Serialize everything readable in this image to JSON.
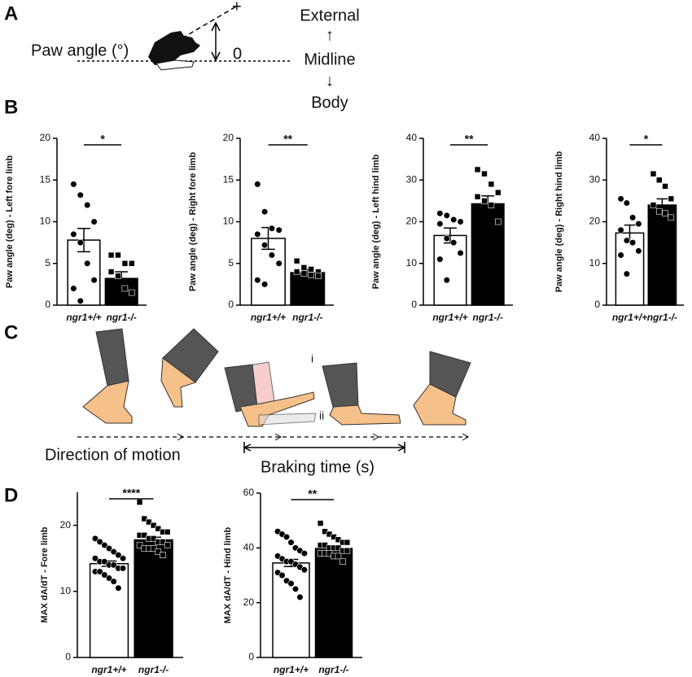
{
  "panels": {
    "a": "A",
    "b": "B",
    "c": "C",
    "d": "D"
  },
  "diagram_a": {
    "label": "Paw angle (°)",
    "plus": "+",
    "zero": "0",
    "external": "External",
    "up": "↑",
    "midline": "Midline",
    "down": "↓",
    "body": "Body"
  },
  "diagram_c": {
    "direction": "Direction of motion",
    "braking": "Braking time (s)",
    "pos_i": "i",
    "pos_ii": "ii"
  },
  "chart_data": [
    {
      "type": "bar",
      "ylabel": "Paw angle  (deg) - Left fore limb",
      "categories": [
        "ngr1+/+",
        "ngr1-/-"
      ],
      "values": [
        7.8,
        3.2
      ],
      "errors": [
        1.4,
        0.8
      ],
      "colors": [
        "#ffffff",
        "#000000"
      ],
      "markers": [
        "circle",
        "square"
      ],
      "significance": "*",
      "points": [
        [
          14.5,
          13.2,
          12.0,
          10.0,
          8.5,
          7.5,
          5.0,
          3.0,
          2.0,
          0.5
        ],
        [
          6.0,
          6.0,
          5.0,
          5.0,
          4.0,
          3.5,
          2.0,
          1.5
        ]
      ],
      "ylim": [
        0,
        20
      ],
      "yticks": [
        0,
        5,
        10,
        15,
        20
      ]
    },
    {
      "type": "bar",
      "ylabel": "Paw angle (deg) - Right fore limb",
      "categories": [
        "ngr1+/+",
        "ngr1-/-"
      ],
      "values": [
        8.0,
        3.9
      ],
      "errors": [
        1.3,
        0.4
      ],
      "colors": [
        "#ffffff",
        "#000000"
      ],
      "markers": [
        "circle",
        "square"
      ],
      "significance": "**",
      "points": [
        [
          14.5,
          11.2,
          9.2,
          9.0,
          8.5,
          7.2,
          6.0,
          5.0,
          3.0,
          2.5
        ],
        [
          5.3,
          4.5,
          4.3,
          4.0,
          4.0,
          3.8,
          3.6,
          3.5
        ]
      ],
      "ylim": [
        0,
        20
      ],
      "yticks": [
        0,
        5,
        10,
        15,
        20
      ]
    },
    {
      "type": "bar",
      "ylabel": "Paw angle (deg) - Left hind limb",
      "categories": [
        "ngr1+/+",
        "ngr1-/-"
      ],
      "values": [
        16.7,
        24.3
      ],
      "errors": [
        1.8,
        1.9
      ],
      "colors": [
        "#ffffff",
        "#000000"
      ],
      "markers": [
        "circle",
        "square"
      ],
      "significance": "**",
      "points": [
        [
          22,
          21.5,
          20.5,
          20,
          19.5,
          16,
          15,
          12.5,
          11,
          6
        ],
        [
          32.5,
          31.5,
          29,
          27,
          26,
          25,
          24,
          20
        ]
      ],
      "ylim": [
        0,
        40
      ],
      "yticks": [
        0,
        10,
        20,
        30,
        40
      ]
    },
    {
      "type": "bar",
      "ylabel": "Paw angle (deg) - Right hind limb",
      "categories": [
        "ngr1+/+",
        "ngr1-/-"
      ],
      "values": [
        17.3,
        24.0
      ],
      "errors": [
        1.9,
        1.5
      ],
      "colors": [
        "#ffffff",
        "#000000"
      ],
      "markers": [
        "circle",
        "square"
      ],
      "significance": "*",
      "points": [
        [
          25.5,
          24.5,
          21,
          19.5,
          18,
          15.5,
          15,
          13,
          12,
          7.5
        ],
        [
          31.5,
          30,
          28.5,
          25.5,
          24,
          22.5,
          22,
          21
        ]
      ],
      "ylim": [
        0,
        40
      ],
      "yticks": [
        0,
        10,
        20,
        30,
        40
      ]
    },
    {
      "type": "bar",
      "ylabel": "MAX dA/dT - Fore limb",
      "categories": [
        "ngr1+/+",
        "ngr1-/-"
      ],
      "values": [
        14.2,
        17.8
      ],
      "errors": [
        0.4,
        0.4
      ],
      "colors": [
        "#ffffff",
        "#000000"
      ],
      "markers": [
        "circle",
        "square"
      ],
      "significance": "****",
      "points": [
        [
          18,
          17.5,
          17,
          16.5,
          16,
          15.5,
          15,
          15,
          14.5,
          14.5,
          14,
          14,
          13.5,
          13.5,
          13,
          13,
          12.5,
          12,
          11.5,
          10.5
        ],
        [
          23.5,
          21,
          20.5,
          20,
          19.5,
          19,
          19,
          18.5,
          18.5,
          18,
          18,
          17.5,
          17.5,
          17,
          17,
          16.5,
          16.5,
          16.5,
          16,
          15.5
        ]
      ],
      "ylim": [
        0,
        25
      ],
      "yticks": [
        0,
        10,
        20
      ]
    },
    {
      "type": "bar",
      "ylabel": "MAX dA/dT - Hind limb",
      "categories": [
        "ngr1+/+",
        "ngr1-/-"
      ],
      "values": [
        34.5,
        39.8
      ],
      "errors": [
        1.3,
        0.7
      ],
      "colors": [
        "#ffffff",
        "#000000"
      ],
      "markers": [
        "circle",
        "square"
      ],
      "significance": "**",
      "points": [
        [
          46,
          45,
          44,
          42,
          40,
          39,
          38,
          37,
          36,
          35,
          35,
          34,
          33,
          32,
          31,
          30,
          28,
          27,
          25,
          22
        ],
        [
          49,
          46,
          45,
          44,
          43,
          42,
          42,
          41,
          41,
          40,
          40,
          40,
          39,
          39,
          38,
          38,
          38,
          37,
          37,
          35
        ]
      ],
      "ylim": [
        0,
        60
      ],
      "yticks": [
        0,
        20,
        40,
        60
      ]
    }
  ]
}
